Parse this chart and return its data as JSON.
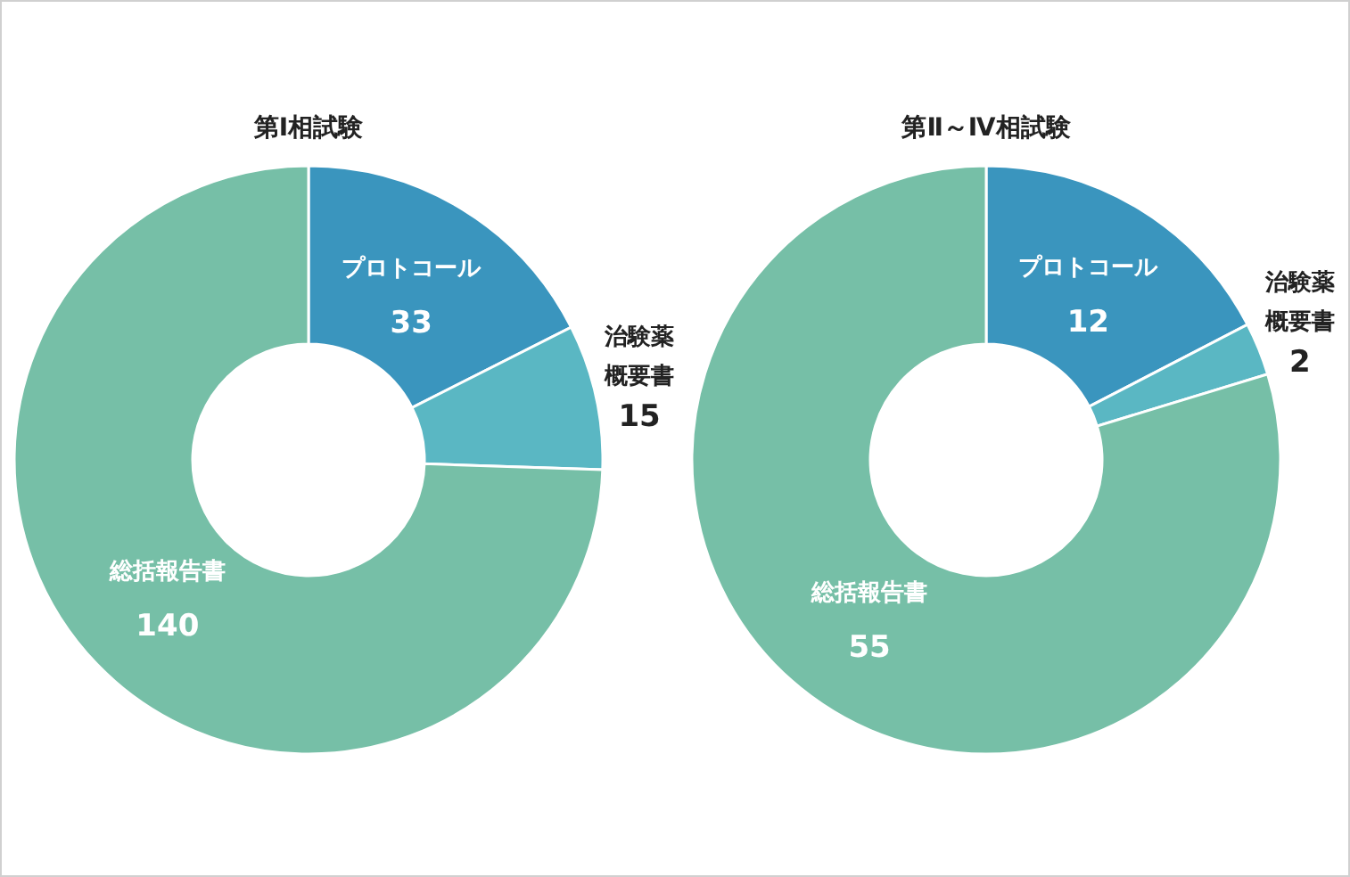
{
  "chart_data": [
    {
      "type": "donut",
      "title": "第Ⅰ相試験",
      "categories": [
        "プロトコール",
        "治験薬概要書",
        "総括報告書"
      ],
      "values": [
        33,
        15,
        140
      ],
      "colors": [
        "#3a95be",
        "#5ab7c3",
        "#76bfa7"
      ],
      "data_labels": true,
      "legend": false
    },
    {
      "type": "donut",
      "title": "第Ⅱ～Ⅳ相試験",
      "categories": [
        "プロトコール",
        "治験薬概要書",
        "総括報告書"
      ],
      "values": [
        12,
        2,
        55
      ],
      "colors": [
        "#3a95be",
        "#5ab7c3",
        "#76bfa7"
      ],
      "data_labels": true,
      "legend": false
    }
  ]
}
